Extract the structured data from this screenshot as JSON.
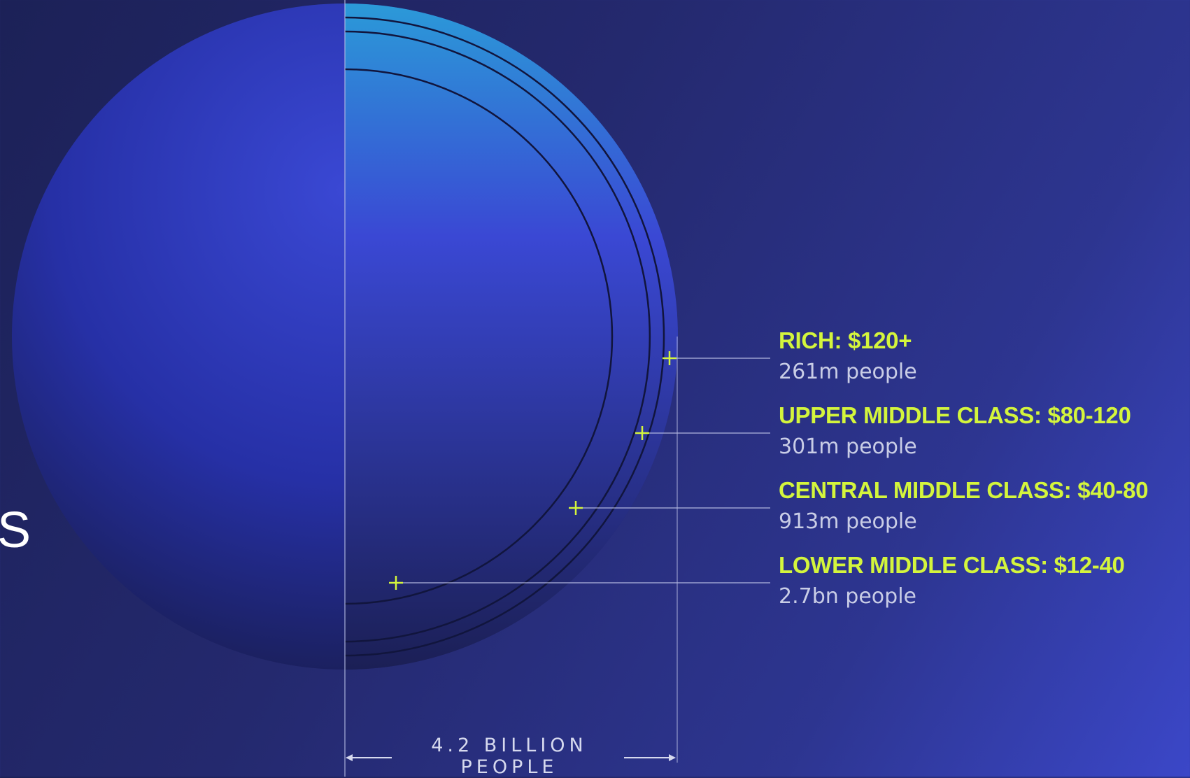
{
  "diagram": {
    "edge_text": "S",
    "total_line1": "4.2 BILLION",
    "total_line2": "PEOPLE",
    "categories": [
      {
        "label": "RICH: $120+",
        "people": "261m people"
      },
      {
        "label": "UPPER MIDDLE CLASS: $80-120",
        "people": "301m people"
      },
      {
        "label": "CENTRAL MIDDLE CLASS: $40-80",
        "people": "913m people"
      },
      {
        "label": "LOWER MIDDLE CLASS: $12-40",
        "people": "2.7bn people"
      }
    ],
    "colors": {
      "accent": "#d4f53c",
      "label_text": "#c9cde6",
      "sphere_light": "#3a48d4",
      "sphere_dark": "#1b1f55",
      "inner_top": "#2b9ad8"
    }
  }
}
